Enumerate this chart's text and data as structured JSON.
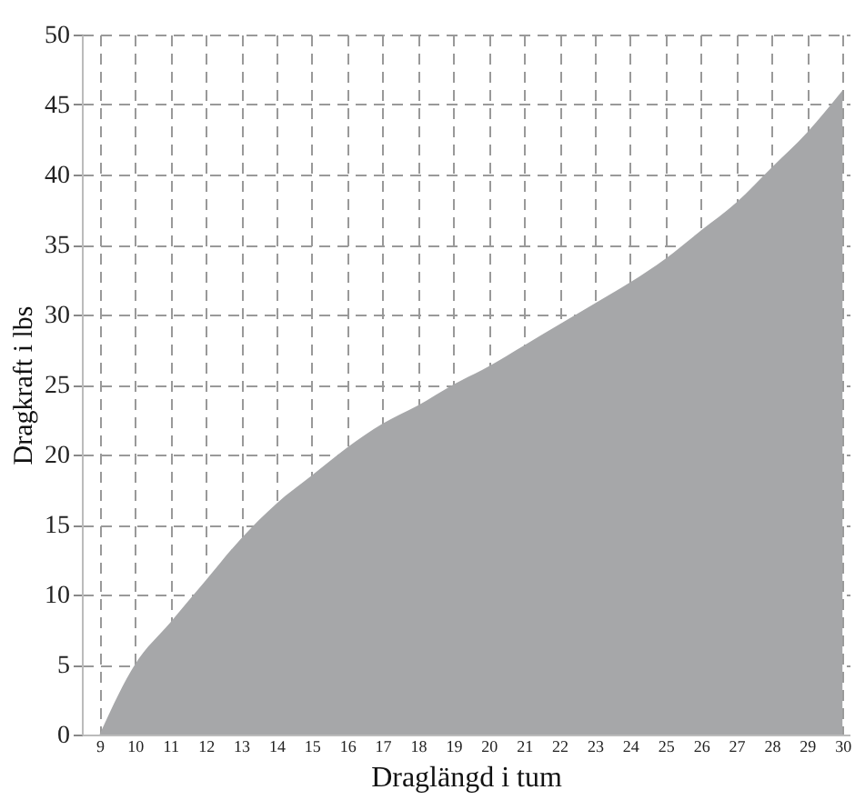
{
  "chart_data": {
    "type": "area",
    "xlabel": "Draglängd i tum",
    "ylabel": "Dragkraft i lbs",
    "x": [
      9,
      10,
      11,
      12,
      13,
      14,
      15,
      16,
      17,
      18,
      19,
      20,
      21,
      22,
      23,
      24,
      25,
      26,
      27,
      28,
      29,
      30
    ],
    "series": [
      {
        "color": "#a6a7a9",
        "values": [
          0,
          5,
          8,
          11,
          14,
          16.5,
          18.5,
          20.5,
          22.2,
          23.5,
          25,
          26.3,
          27.8,
          29.3,
          30.8,
          32.3,
          34,
          36,
          38,
          40.5,
          43,
          46
        ]
      }
    ],
    "xlim": [
      8.5,
      30.2
    ],
    "xticks": [
      9,
      10,
      11,
      12,
      13,
      14,
      15,
      16,
      17,
      18,
      19,
      20,
      21,
      22,
      23,
      24,
      25,
      26,
      27,
      28,
      29,
      30
    ],
    "ylim": [
      0,
      50
    ],
    "yticks": [
      0,
      5,
      10,
      15,
      20,
      25,
      30,
      35,
      40,
      45,
      50
    ],
    "grid": true
  }
}
